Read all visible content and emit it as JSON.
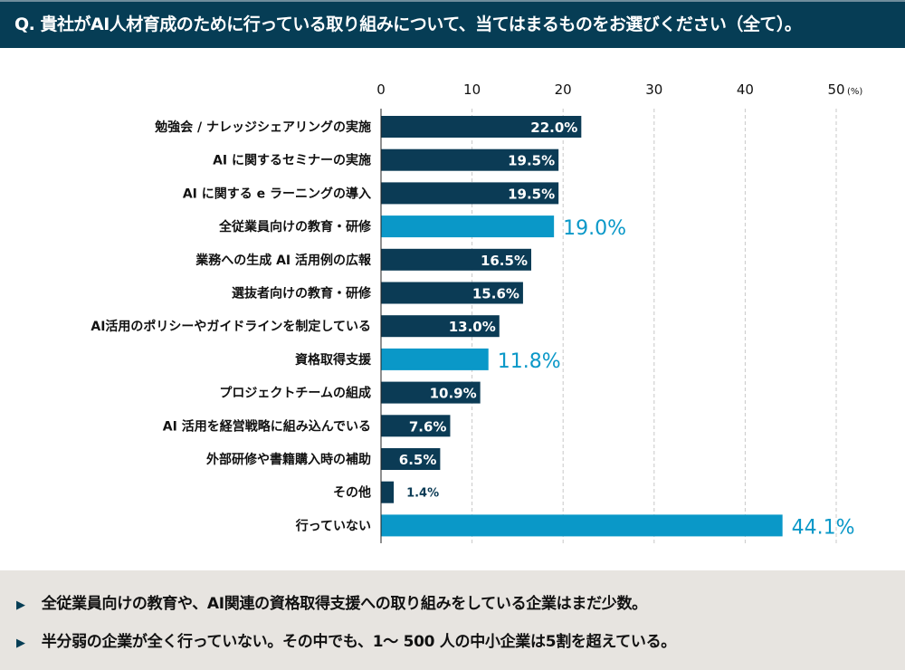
{
  "header": {
    "title": "Q. 貴社がAI人材育成のために行っている取り組みについて、当てはまるものをお選びください（全て）。"
  },
  "chart_data": {
    "type": "bar",
    "orientation": "horizontal",
    "title": "Q. 貴社がAI人材育成のために行っている取り組みについて、当てはまるものをお選びください（全て）。",
    "xlim": [
      0,
      50
    ],
    "ticks": [
      "0",
      "10",
      "20",
      "30",
      "40",
      "50"
    ],
    "unit": "(%)",
    "grid": "vertical-dashed",
    "categories": [
      "勉強会 / ナレッジシェアリングの実施",
      "AI に関するセミナーの実施",
      "AI に関する e ラーニングの導入",
      "全従業員向けの教育・研修",
      "業務への生成 AI 活用例の広報",
      "選抜者向けの教育・研修",
      "AI活用のポリシーやガイドラインを制定している",
      "資格取得支援",
      "プロジェクトチームの組成",
      "AI 活用を経営戦略に組み込んでいる",
      "外部研修や書籍購入時の補助",
      "その他",
      "行っていない"
    ],
    "values": [
      22.0,
      19.5,
      19.5,
      19.0,
      16.5,
      15.6,
      13.0,
      11.8,
      10.9,
      7.6,
      6.5,
      1.4,
      44.1
    ],
    "labels": [
      "22.0%",
      "19.5%",
      "19.5%",
      "19.0%",
      "16.5%",
      "15.6%",
      "13.0%",
      "11.8%",
      "10.9%",
      "7.6%",
      "6.5%",
      "1.4%",
      "44.1%"
    ],
    "highlighted": [
      false,
      false,
      false,
      true,
      false,
      false,
      false,
      true,
      false,
      false,
      false,
      false,
      true
    ],
    "colors": {
      "normal": "#0b3b55",
      "highlight": "#0a98c8"
    }
  },
  "footer": {
    "points": [
      "全従業員向けの教育や、AI関連の資格取得支援への取り組みをしている企業はまだ少数。",
      "半分弱の企業が全く行っていない。その中でも、1～ 500 人の中小企業は5割を超えている。"
    ],
    "bullet": "▶"
  }
}
